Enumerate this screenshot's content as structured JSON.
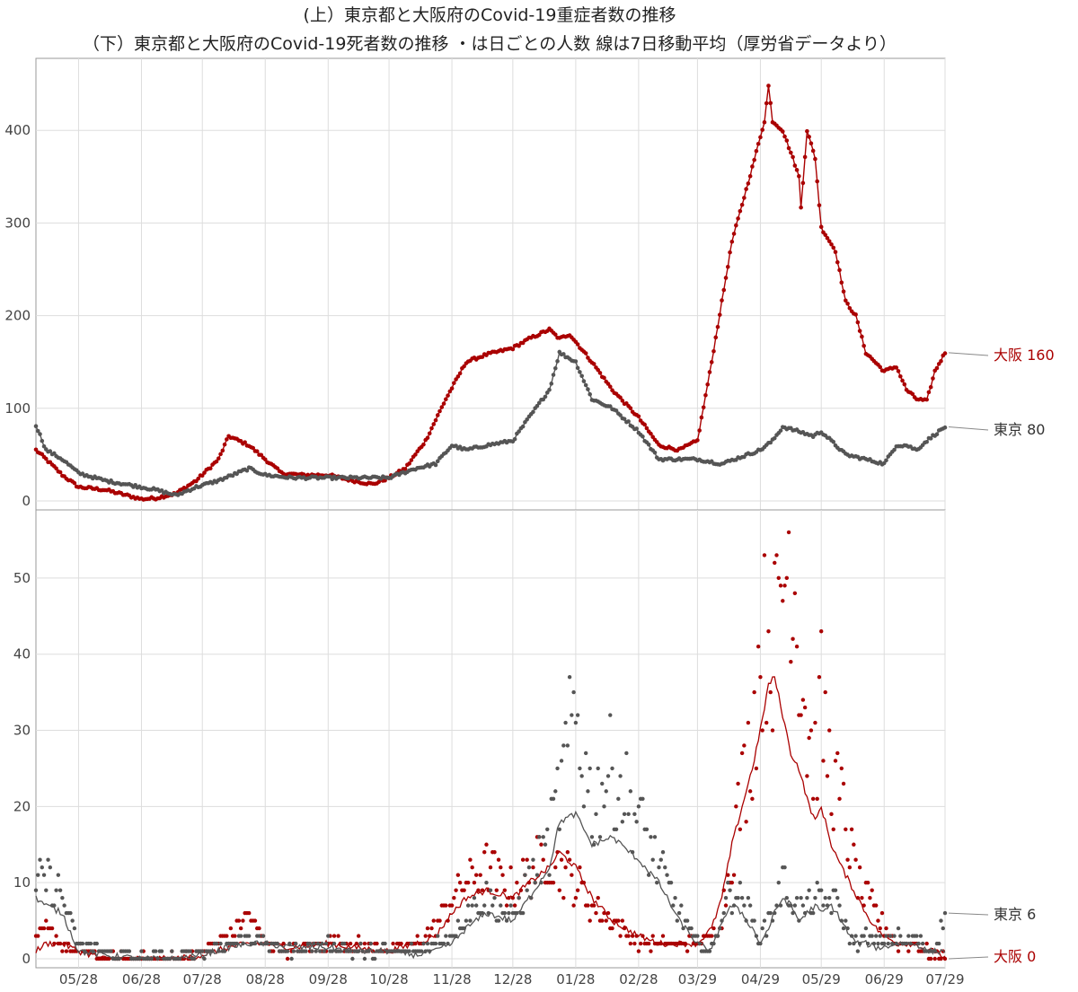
{
  "chart_data": [
    {
      "type": "line",
      "title": "(上）東京都と大阪府のCovid-19重症者数の推移",
      "subtitle": "（下）東京都と大阪府のCovid-19死者数の推移 ・は日ごとの人数 線は7日移動平均（厚労省データより）",
      "panel": "top",
      "x_ticks": [
        "05/28",
        "06/28",
        "07/28",
        "08/28",
        "09/28",
        "10/28",
        "11/28",
        "12/28",
        "01/28",
        "02/28",
        "03/29",
        "04/29",
        "05/29",
        "06/29",
        "07/29"
      ],
      "xlim": [
        "2020-05-07",
        "2021-07-29"
      ],
      "ylim": [
        0,
        470
      ],
      "y_ticks": [
        0,
        100,
        200,
        300,
        400
      ],
      "grid": true,
      "series": [
        {
          "name": "大阪",
          "color": "#aa0000",
          "x": [
            "2020-05-07",
            "2020-05-12",
            "2020-05-20",
            "2020-05-28",
            "2020-06-10",
            "2020-06-28",
            "2020-07-05",
            "2020-07-15",
            "2020-07-25",
            "2020-08-05",
            "2020-08-10",
            "2020-08-15",
            "2020-08-20",
            "2020-08-28",
            "2020-09-05",
            "2020-09-15",
            "2020-09-28",
            "2020-10-10",
            "2020-10-20",
            "2020-10-28",
            "2020-11-05",
            "2020-11-15",
            "2020-11-25",
            "2020-12-05",
            "2020-12-15",
            "2020-12-28",
            "2021-01-05",
            "2021-01-15",
            "2021-01-20",
            "2021-01-25",
            "2021-02-05",
            "2021-02-15",
            "2021-02-28",
            "2021-03-10",
            "2021-03-20",
            "2021-03-29",
            "2021-04-05",
            "2021-04-15",
            "2021-04-25",
            "2021-05-01",
            "2021-05-03",
            "2021-05-05",
            "2021-05-10",
            "2021-05-15",
            "2021-05-18",
            "2021-05-19",
            "2021-05-22",
            "2021-05-26",
            "2021-05-29",
            "2021-06-05",
            "2021-06-10",
            "2021-06-15",
            "2021-06-20",
            "2021-06-29",
            "2021-07-05",
            "2021-07-10",
            "2021-07-15",
            "2021-07-20",
            "2021-07-24",
            "2021-07-29"
          ],
          "values": [
            55,
            45,
            28,
            15,
            12,
            2,
            3,
            8,
            22,
            45,
            70,
            65,
            60,
            45,
            30,
            28,
            28,
            22,
            18,
            25,
            35,
            65,
            110,
            150,
            158,
            165,
            175,
            185,
            175,
            180,
            150,
            120,
            90,
            60,
            55,
            65,
            150,
            280,
            360,
            410,
            448,
            410,
            400,
            370,
            350,
            317,
            400,
            370,
            295,
            270,
            215,
            200,
            160,
            140,
            145,
            120,
            110,
            108,
            140,
            160
          ]
        },
        {
          "name": "東京",
          "color": "#555555",
          "x": [
            "2020-05-07",
            "2020-05-12",
            "2020-05-20",
            "2020-05-28",
            "2020-06-10",
            "2020-06-28",
            "2020-07-05",
            "2020-07-15",
            "2020-07-25",
            "2020-08-05",
            "2020-08-20",
            "2020-08-28",
            "2020-09-10",
            "2020-09-28",
            "2020-10-15",
            "2020-10-28",
            "2020-11-10",
            "2020-11-20",
            "2020-11-28",
            "2020-12-05",
            "2020-12-15",
            "2020-12-28",
            "2021-01-05",
            "2021-01-15",
            "2021-01-20",
            "2021-01-28",
            "2021-02-05",
            "2021-02-15",
            "2021-02-28",
            "2021-03-10",
            "2021-03-29",
            "2021-04-10",
            "2021-04-29",
            "2021-05-05",
            "2021-05-10",
            "2021-05-18",
            "2021-05-25",
            "2021-05-29",
            "2021-06-10",
            "2021-06-20",
            "2021-06-29",
            "2021-07-05",
            "2021-07-10",
            "2021-07-15",
            "2021-07-20",
            "2021-07-29"
          ],
          "values": [
            82,
            55,
            45,
            30,
            22,
            15,
            12,
            6,
            15,
            22,
            35,
            28,
            25,
            25,
            25,
            25,
            35,
            40,
            60,
            55,
            60,
            65,
            90,
            120,
            160,
            150,
            110,
            100,
            75,
            45,
            45,
            40,
            55,
            65,
            80,
            75,
            70,
            75,
            50,
            45,
            40,
            60,
            60,
            55,
            65,
            80
          ]
        }
      ]
    },
    {
      "type": "scatter",
      "panel": "bottom",
      "x_ticks": [
        "05/28",
        "06/28",
        "07/28",
        "08/28",
        "09/28",
        "10/28",
        "11/28",
        "12/28",
        "01/28",
        "02/28",
        "03/29",
        "04/29",
        "05/29",
        "06/29",
        "07/29"
      ],
      "xlim": [
        "2020-05-07",
        "2021-07-29"
      ],
      "ylim": [
        0,
        58
      ],
      "y_ticks": [
        0,
        10,
        20,
        30,
        40,
        50
      ],
      "grid": true,
      "series": [
        {
          "name": "大阪",
          "color": "#aa0000",
          "moving_average_window": 7,
          "x": [
            "2020-05-07",
            "2020-05-12",
            "2020-05-20",
            "2020-05-28",
            "2020-06-10",
            "2020-06-28",
            "2020-07-15",
            "2020-07-28",
            "2020-08-10",
            "2020-08-20",
            "2020-08-28",
            "2020-09-10",
            "2020-09-28",
            "2020-10-10",
            "2020-10-28",
            "2020-11-10",
            "2020-11-20",
            "2020-11-28",
            "2020-12-05",
            "2020-12-15",
            "2020-12-28",
            "2021-01-05",
            "2021-01-15",
            "2021-01-20",
            "2021-01-28",
            "2021-02-05",
            "2021-02-15",
            "2021-02-28",
            "2021-03-10",
            "2021-03-20",
            "2021-03-29",
            "2021-04-05",
            "2021-04-10",
            "2021-04-15",
            "2021-04-20",
            "2021-04-25",
            "2021-04-29",
            "2021-05-03",
            "2021-05-06",
            "2021-05-10",
            "2021-05-14",
            "2021-05-18",
            "2021-05-22",
            "2021-05-26",
            "2021-05-29",
            "2021-06-03",
            "2021-06-08",
            "2021-06-12",
            "2021-06-16",
            "2021-06-20",
            "2021-06-25",
            "2021-06-29",
            "2021-07-05",
            "2021-07-10",
            "2021-07-15",
            "2021-07-20",
            "2021-07-25",
            "2021-07-29"
          ],
          "moving_average": [
            1,
            2,
            2,
            1,
            0,
            0,
            0,
            0.5,
            1.5,
            2,
            2,
            1.5,
            2,
            1.5,
            1,
            2,
            3,
            6,
            8,
            9,
            8,
            10,
            12,
            14,
            12,
            8,
            5,
            3,
            2,
            2,
            2,
            4,
            8,
            15,
            20,
            25,
            30,
            36,
            37,
            32,
            27,
            25,
            21,
            18,
            20,
            15,
            12,
            10,
            8,
            6,
            4,
            3,
            2,
            2,
            2,
            1,
            1,
            0
          ],
          "daily_sample": [
            2,
            4,
            2,
            1,
            0,
            0,
            0,
            1,
            3,
            6,
            2,
            1,
            2,
            2,
            1,
            2,
            4,
            8,
            10,
            12,
            9,
            11,
            14,
            12,
            10,
            7,
            5,
            2,
            2,
            2,
            2,
            3,
            6,
            14,
            22,
            30,
            40,
            44,
            41,
            50,
            55,
            42,
            30,
            26,
            33,
            24,
            20,
            15,
            10,
            8,
            6,
            4,
            2,
            2,
            2,
            1,
            0,
            0
          ]
        },
        {
          "name": "東京",
          "color": "#555555",
          "moving_average_window": 7,
          "x": [
            "2020-05-07",
            "2020-05-12",
            "2020-05-20",
            "2020-05-28",
            "2020-06-10",
            "2020-06-28",
            "2020-07-15",
            "2020-07-28",
            "2020-08-10",
            "2020-08-20",
            "2020-08-28",
            "2020-09-10",
            "2020-09-28",
            "2020-10-10",
            "2020-10-28",
            "2020-11-10",
            "2020-11-20",
            "2020-11-28",
            "2020-12-05",
            "2020-12-15",
            "2020-12-28",
            "2021-01-05",
            "2021-01-15",
            "2021-01-20",
            "2021-01-28",
            "2021-02-05",
            "2021-02-15",
            "2021-02-28",
            "2021-03-10",
            "2021-03-20",
            "2021-03-29",
            "2021-04-05",
            "2021-04-10",
            "2021-04-15",
            "2021-04-20",
            "2021-04-25",
            "2021-04-29",
            "2021-05-03",
            "2021-05-06",
            "2021-05-10",
            "2021-05-14",
            "2021-05-18",
            "2021-05-22",
            "2021-05-26",
            "2021-05-29",
            "2021-06-03",
            "2021-06-08",
            "2021-06-12",
            "2021-06-16",
            "2021-06-20",
            "2021-06-25",
            "2021-06-29",
            "2021-07-05",
            "2021-07-10",
            "2021-07-15",
            "2021-07-20",
            "2021-07-25",
            "2021-07-29"
          ],
          "moving_average": [
            8,
            7,
            6,
            1,
            0.5,
            0,
            0,
            0.5,
            1.5,
            2,
            2,
            1.5,
            1.5,
            1,
            1,
            0.5,
            1,
            2,
            4,
            6,
            5,
            8,
            12,
            18,
            19,
            15,
            16,
            13,
            10,
            5,
            2,
            1,
            5,
            7,
            6,
            4,
            2,
            4,
            6,
            8,
            7,
            5,
            6,
            7,
            6,
            7,
            5,
            3,
            2,
            2,
            1.5,
            1.5,
            2,
            2,
            2,
            1,
            1,
            1
          ],
          "daily_sample": [
            9,
            11,
            8,
            2,
            1,
            0,
            0,
            1,
            2,
            3,
            2,
            1,
            2,
            1,
            1,
            1,
            2,
            3,
            6,
            8,
            5,
            10,
            15,
            22,
            32,
            20,
            25,
            18,
            12,
            6,
            2,
            1,
            6,
            9,
            8,
            5,
            3,
            5,
            7,
            10,
            8,
            6,
            7,
            8,
            7,
            8,
            6,
            3,
            2,
            3,
            2,
            2,
            3,
            2,
            3,
            1,
            2,
            6
          ]
        }
      ]
    }
  ],
  "callouts": {
    "top_osaka": "大阪 160",
    "top_tokyo": "東京 80",
    "bottom_tokyo": "東京 6",
    "bottom_osaka": "大阪 0"
  },
  "colors": {
    "osaka": "#aa0000",
    "tokyo": "#555555",
    "grid": "#dddddd",
    "frame": "#999999"
  }
}
